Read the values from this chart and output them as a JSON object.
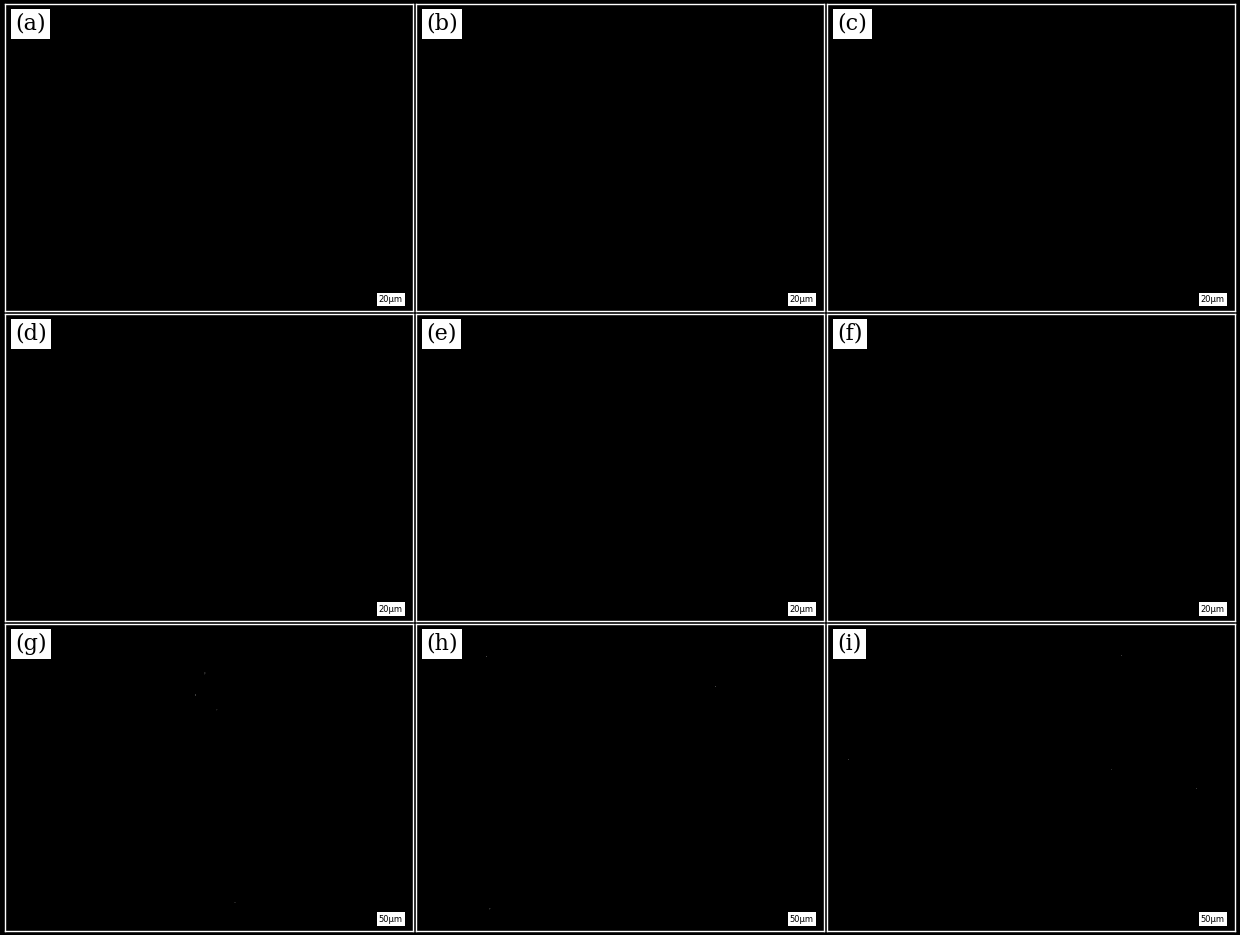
{
  "labels": [
    "(a)",
    "(b)",
    "(c)",
    "(d)",
    "(e)",
    "(f)",
    "(g)",
    "(h)",
    "(i)"
  ],
  "nrows": 3,
  "ncols": 3,
  "background_color": "#000000",
  "label_box_color": "#ffffff",
  "label_text_color": "#000000",
  "scalebar_box_color": "#ffffff",
  "scalebar_text_color": "#000000",
  "outer_border_color": "#000000",
  "grid_line_color": "#ffffff",
  "label_fontsize": 16,
  "scalebar_fontsize": 6,
  "figsize": [
    12.4,
    9.35
  ],
  "dpi": 100
}
